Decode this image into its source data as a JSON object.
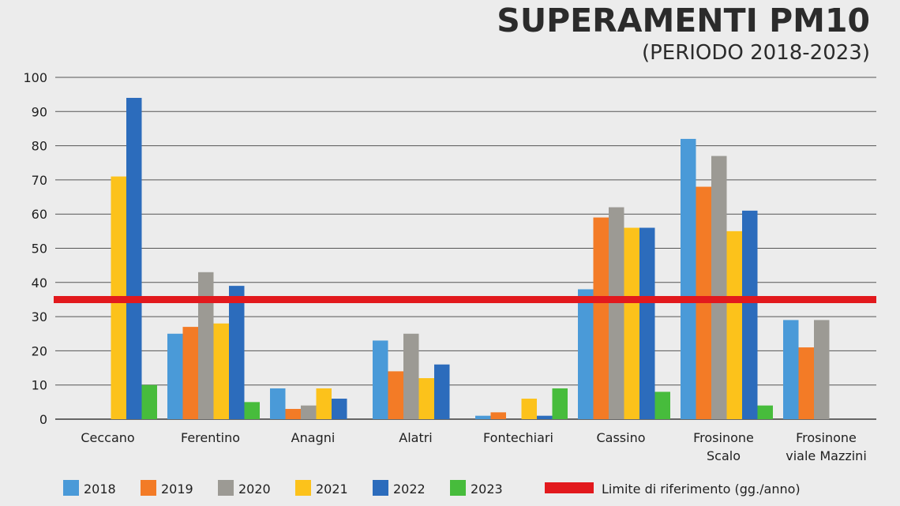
{
  "chart_data": {
    "type": "bar",
    "title": "SUPERAMENTI PM10",
    "subtitle": "(PERIODO 2018-2023)",
    "xlabel": "",
    "ylabel": "",
    "ylim": [
      0,
      100
    ],
    "yticks": [
      0,
      10,
      20,
      30,
      40,
      50,
      60,
      70,
      80,
      90,
      100
    ],
    "grid": true,
    "categories": [
      [
        "Ceccano"
      ],
      [
        "Ferentino"
      ],
      [
        "Anagni"
      ],
      [
        "Alatri"
      ],
      [
        "Fontechiari"
      ],
      [
        "Cassino"
      ],
      [
        "Frosinone",
        "Scalo"
      ],
      [
        "Frosinone",
        "viale Mazzini"
      ]
    ],
    "series": [
      {
        "name": "2018",
        "color": "#4a9ad8",
        "values": [
          null,
          25,
          9,
          23,
          1,
          38,
          82,
          29
        ]
      },
      {
        "name": "2019",
        "color": "#f37b26",
        "values": [
          null,
          27,
          3,
          14,
          2,
          59,
          68,
          21
        ]
      },
      {
        "name": "2020",
        "color": "#9c9a94",
        "values": [
          null,
          43,
          4,
          25,
          null,
          62,
          77,
          29
        ]
      },
      {
        "name": "2021",
        "color": "#fcc21b",
        "values": [
          71,
          28,
          9,
          12,
          6,
          56,
          55,
          null
        ]
      },
      {
        "name": "2022",
        "color": "#2c6cbc",
        "values": [
          94,
          39,
          6,
          16,
          1,
          56,
          61,
          null
        ]
      },
      {
        "name": "2023",
        "color": "#47bc3c",
        "values": [
          10,
          5,
          null,
          null,
          9,
          8,
          4,
          null
        ]
      }
    ],
    "reference_line": {
      "label": "Limite di riferimento (gg./anno)",
      "value": 35,
      "color": "#e2191d"
    },
    "legend_position": "bottom"
  }
}
